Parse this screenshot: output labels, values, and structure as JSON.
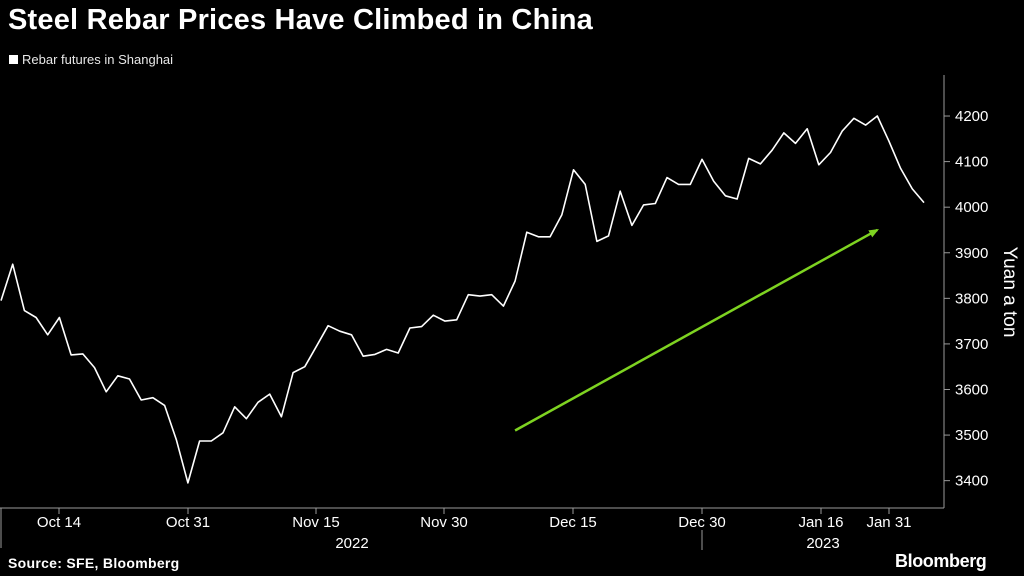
{
  "header": {
    "title": "Steel Rebar Prices Have Climbed in China"
  },
  "footer": {
    "source": "Source: SFE, Bloomberg",
    "brand": "Bloomberg"
  },
  "chart_data": {
    "type": "line",
    "title": "Steel Rebar Prices Have Climbed in China",
    "ylabel": "Yuan a ton",
    "xlabel": "",
    "x_tick_labels": [
      "Oct 14",
      "Oct 31",
      "Nov 15",
      "Nov 30",
      "Dec 15",
      "Dec 30",
      "Jan 16",
      "Jan 31"
    ],
    "year_labels": [
      "2022",
      "2023"
    ],
    "y_ticks": [
      3400,
      3500,
      3600,
      3700,
      3800,
      3900,
      4000,
      4100,
      4200
    ],
    "ylim": [
      3340,
      4290
    ],
    "grid": false,
    "legend": "top-left",
    "colors": {
      "series": "#ffffff",
      "trend_arrow": "#7ed321",
      "background": "#000000"
    },
    "series": [
      {
        "name": "Rebar futures in Shanghai",
        "values": [
          3795,
          3875,
          3773,
          3758,
          3720,
          3758,
          3676,
          3678,
          3648,
          3595,
          3630,
          3623,
          3577,
          3582,
          3565,
          3490,
          3395,
          3487,
          3487,
          3505,
          3562,
          3536,
          3572,
          3590,
          3540,
          3637,
          3650,
          3695,
          3740,
          3728,
          3720,
          3673,
          3677,
          3688,
          3680,
          3735,
          3738,
          3763,
          3750,
          3753,
          3808,
          3805,
          3808,
          3783,
          3838,
          3945,
          3935,
          3935,
          3983,
          4082,
          4050,
          3925,
          3937,
          4035,
          3960,
          4005,
          4008,
          4065,
          4050,
          4050,
          4105,
          4057,
          4025,
          4018,
          4107,
          4095,
          4125,
          4163,
          4140,
          4172,
          4093,
          4120,
          4167,
          4195,
          4180,
          4200,
          4145,
          4085,
          4040,
          4010
        ]
      }
    ],
    "annotations": [
      {
        "type": "arrow",
        "from": [
          44,
          3510
        ],
        "to": [
          75,
          3950
        ],
        "color": "#7ed321",
        "description": "upward trend arrow"
      }
    ]
  }
}
